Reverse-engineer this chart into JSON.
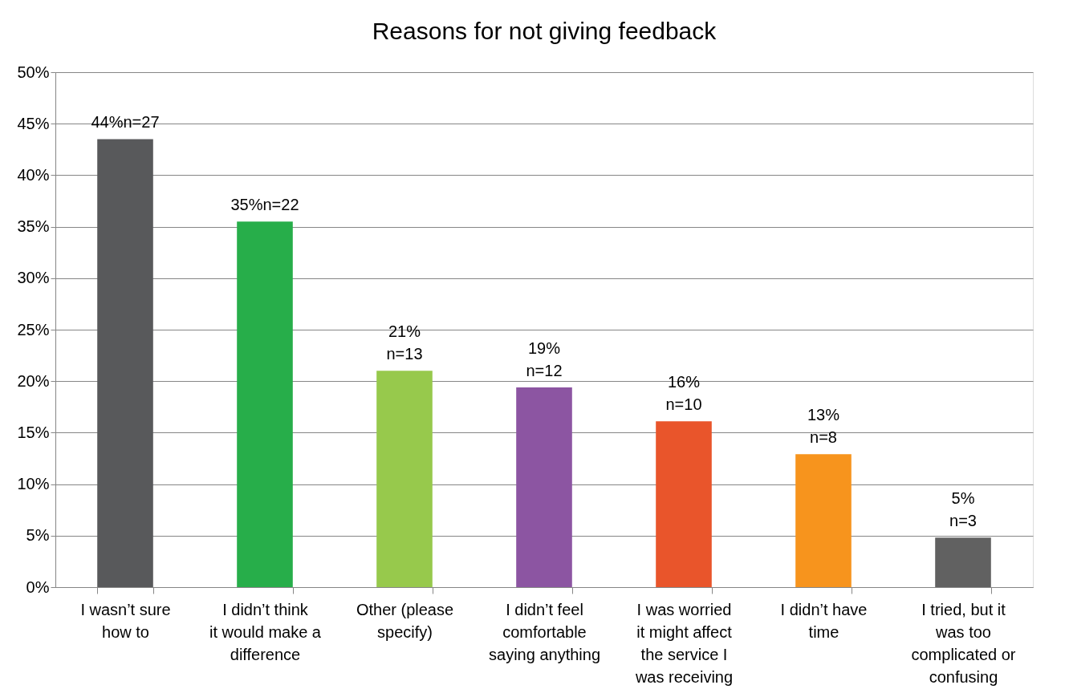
{
  "chart_data": {
    "type": "bar",
    "title": "Reasons for not giving feedback",
    "categories": [
      "I wasn’t sure how to",
      "I didn’t think it would make a difference",
      "Other (please specify)",
      "I didn’t feel comfortable saying anything",
      "I was worried it might affect the service I was receiving",
      "I didn’t have time",
      "I tried, but it was too complicated or confusing"
    ],
    "values": [
      43.5,
      35.5,
      21.0,
      19.4,
      16.1,
      12.9,
      4.8
    ],
    "colors": [
      "#58595b",
      "#27ae4a",
      "#97c94c",
      "#8c55a2",
      "#e9552b",
      "#f7941d",
      "#616161"
    ],
    "value_labels": [
      "44%n=27",
      "35%n=22",
      "21%\nn=13",
      "19%\nn=12",
      "16%\nn=10",
      "13%\nn=8",
      "5%\nn=3"
    ],
    "ylim": [
      0,
      50
    ],
    "yticks": [
      {
        "value": 0,
        "label": "0%"
      },
      {
        "value": 5,
        "label": "5%"
      },
      {
        "value": 10,
        "label": "10%"
      },
      {
        "value": 15,
        "label": "15%"
      },
      {
        "value": 20,
        "label": "20%"
      },
      {
        "value": 25,
        "label": "25%"
      },
      {
        "value": 30,
        "label": "30%"
      },
      {
        "value": 35,
        "label": "35%"
      },
      {
        "value": 40,
        "label": "40%"
      },
      {
        "value": 45,
        "label": "45%"
      },
      {
        "value": 50,
        "label": "50%"
      }
    ],
    "grid": "y"
  }
}
